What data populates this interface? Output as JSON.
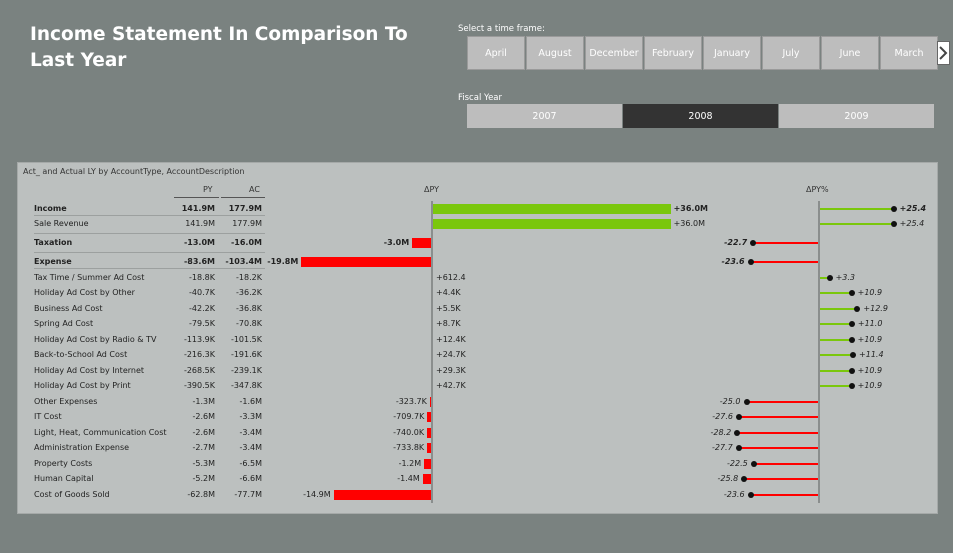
{
  "title": "Income Statement In Comparison To Last Year",
  "time_frame_label": "Select a time frame:",
  "months": [
    "April",
    "August",
    "December",
    "February",
    "January",
    "July",
    "June",
    "March"
  ],
  "fiscal_year_label": "Fiscal Year",
  "years": [
    {
      "label": "2007",
      "selected": false
    },
    {
      "label": "2008",
      "selected": true
    },
    {
      "label": "2009",
      "selected": false
    }
  ],
  "colors": {
    "positive": "#7ac70c",
    "negative": "#ff0000",
    "background": "#7a8280",
    "panel": "#bcc0bf",
    "selected_year": "#333333"
  },
  "visual": {
    "title": "Act_ and Actual LY by AccountType, AccountDescription",
    "headers": {
      "py": "PY",
      "ac": "AC",
      "delta": "ΔPY",
      "delta_pct": "ΔPY%"
    },
    "rows": [
      {
        "name": "Income",
        "py": "141.9M",
        "ac": "177.9M",
        "delta_label": "+36.0M",
        "delta": 36.0,
        "pct_label": "+25.4",
        "pct": 25.4,
        "bold": true
      },
      {
        "name": "Sale Revenue",
        "py": "141.9M",
        "ac": "177.9M",
        "delta_label": "+36.0M",
        "delta": 36.0,
        "pct_label": "+25.4",
        "pct": 25.4,
        "bold": false
      },
      {
        "name": "Taxation",
        "py": "-13.0M",
        "ac": "-16.0M",
        "delta_label": "-3.0M",
        "delta": -3.0,
        "pct_label": "-22.7",
        "pct": -22.7,
        "bold": true
      },
      {
        "name": "Expense",
        "py": "-83.6M",
        "ac": "-103.4M",
        "delta_label": "-19.8M",
        "delta": -19.8,
        "pct_label": "-23.6",
        "pct": -23.6,
        "bold": true
      },
      {
        "name": "Tax Time / Summer Ad Cost",
        "py": "-18.8K",
        "ac": "-18.2K",
        "delta_label": "+612.4",
        "delta": 0.0006124,
        "pct_label": "+3.3",
        "pct": 3.3,
        "bold": false
      },
      {
        "name": "Holiday Ad Cost by Other",
        "py": "-40.7K",
        "ac": "-36.2K",
        "delta_label": "+4.4K",
        "delta": 0.0044,
        "pct_label": "+10.9",
        "pct": 10.9,
        "bold": false
      },
      {
        "name": "Business Ad Cost",
        "py": "-42.2K",
        "ac": "-36.8K",
        "delta_label": "+5.5K",
        "delta": 0.0055,
        "pct_label": "+12.9",
        "pct": 12.9,
        "bold": false
      },
      {
        "name": "Spring Ad Cost",
        "py": "-79.5K",
        "ac": "-70.8K",
        "delta_label": "+8.7K",
        "delta": 0.0087,
        "pct_label": "+11.0",
        "pct": 11.0,
        "bold": false
      },
      {
        "name": "Holiday Ad Cost by Radio & TV",
        "py": "-113.9K",
        "ac": "-101.5K",
        "delta_label": "+12.4K",
        "delta": 0.0124,
        "pct_label": "+10.9",
        "pct": 10.9,
        "bold": false
      },
      {
        "name": "Back-to-School Ad Cost",
        "py": "-216.3K",
        "ac": "-191.6K",
        "delta_label": "+24.7K",
        "delta": 0.0247,
        "pct_label": "+11.4",
        "pct": 11.4,
        "bold": false
      },
      {
        "name": "Holiday Ad Cost by Internet",
        "py": "-268.5K",
        "ac": "-239.1K",
        "delta_label": "+29.3K",
        "delta": 0.0293,
        "pct_label": "+10.9",
        "pct": 10.9,
        "bold": false
      },
      {
        "name": "Holiday Ad Cost by Print",
        "py": "-390.5K",
        "ac": "-347.8K",
        "delta_label": "+42.7K",
        "delta": 0.0427,
        "pct_label": "+10.9",
        "pct": 10.9,
        "bold": false
      },
      {
        "name": "Other Expenses",
        "py": "-1.3M",
        "ac": "-1.6M",
        "delta_label": "-323.7K",
        "delta": -0.3237,
        "pct_label": "-25.0",
        "pct": -25.0,
        "bold": false
      },
      {
        "name": "IT Cost",
        "py": "-2.6M",
        "ac": "-3.3M",
        "delta_label": "-709.7K",
        "delta": -0.7097,
        "pct_label": "-27.6",
        "pct": -27.6,
        "bold": false
      },
      {
        "name": "Light, Heat, Communication Cost",
        "py": "-2.6M",
        "ac": "-3.4M",
        "delta_label": "-740.0K",
        "delta": -0.74,
        "pct_label": "-28.2",
        "pct": -28.2,
        "bold": false
      },
      {
        "name": "Administration Expense",
        "py": "-2.7M",
        "ac": "-3.4M",
        "delta_label": "-733.8K",
        "delta": -0.7338,
        "pct_label": "-27.7",
        "pct": -27.7,
        "bold": false
      },
      {
        "name": "Property Costs",
        "py": "-5.3M",
        "ac": "-6.5M",
        "delta_label": "-1.2M",
        "delta": -1.2,
        "pct_label": "-22.5",
        "pct": -22.5,
        "bold": false
      },
      {
        "name": "Human Capital",
        "py": "-5.2M",
        "ac": "-6.6M",
        "delta_label": "-1.4M",
        "delta": -1.4,
        "pct_label": "-25.8",
        "pct": -25.8,
        "bold": false
      },
      {
        "name": "Cost of Goods Sold",
        "py": "-62.8M",
        "ac": "-77.7M",
        "delta_label": "-14.9M",
        "delta": -14.9,
        "pct_label": "-23.6",
        "pct": -23.6,
        "bold": false
      }
    ]
  }
}
